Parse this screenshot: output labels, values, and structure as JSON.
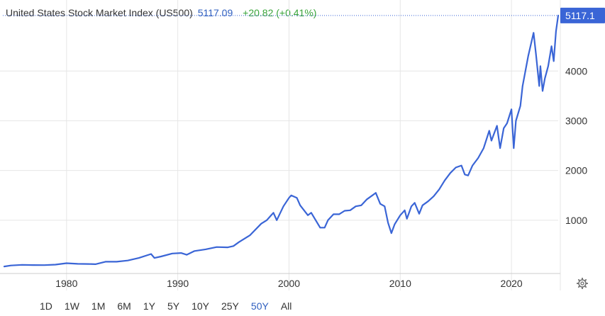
{
  "header": {
    "title": "United States Stock Market Index (US500)",
    "price": "5117.09",
    "change": "+20.82 (+0.41%)"
  },
  "ranges": [
    "1D",
    "1W",
    "1M",
    "6M",
    "1Y",
    "5Y",
    "10Y",
    "25Y",
    "50Y",
    "All"
  ],
  "active_range": "50Y",
  "icons": {
    "settings": "gear-icon"
  },
  "colors": {
    "line": "#3a65d6",
    "accent": "#2f5fbf",
    "positive": "#3aa53a"
  },
  "chart_data": {
    "type": "line",
    "title": "",
    "xlabel": "",
    "ylabel": "",
    "x_ticks": [
      1980,
      1990,
      2000,
      2010,
      2020
    ],
    "y_ticks": [
      1000,
      2000,
      3000,
      4000
    ],
    "xlim": [
      1974.4,
      2024.2
    ],
    "ylim": [
      -100,
      5230
    ],
    "last_value_label": "5117.1",
    "grid": true,
    "series": [
      {
        "x": [
          1974.4,
          1975.0,
          1976.0,
          1977.0,
          1978.0,
          1979.0,
          1980.0,
          1981.0,
          1982.0,
          1982.6,
          1983.5,
          1984.5,
          1985.5,
          1986.5,
          1987.6,
          1987.9,
          1988.5,
          1989.5,
          1990.3,
          1990.8,
          1991.5,
          1992.5,
          1993.5,
          1994.5,
          1995.0,
          1995.5,
          1996.5,
          1997.5,
          1998.0,
          1998.6,
          1998.9,
          1999.5,
          2000.0,
          2000.2,
          2000.7,
          2001.0,
          2001.7,
          2002.0,
          2002.4,
          2002.8,
          2003.2,
          2003.5,
          2004.0,
          2004.5,
          2005.0,
          2005.5,
          2006.0,
          2006.5,
          2007.0,
          2007.5,
          2007.8,
          2008.2,
          2008.6,
          2008.9,
          2009.2,
          2009.5,
          2010.0,
          2010.4,
          2010.6,
          2011.0,
          2011.3,
          2011.7,
          2012.0,
          2012.5,
          2013.0,
          2013.5,
          2014.0,
          2014.5,
          2015.0,
          2015.5,
          2015.8,
          2016.1,
          2016.5,
          2017.0,
          2017.5,
          2018.0,
          2018.2,
          2018.7,
          2018.98,
          2019.3,
          2019.6,
          2020.0,
          2020.2,
          2020.4,
          2020.8,
          2021.0,
          2021.5,
          2021.99,
          2022.2,
          2022.5,
          2022.6,
          2022.8,
          2023.0,
          2023.3,
          2023.6,
          2023.8,
          2024.0,
          2024.2
        ],
        "values": [
          70,
          90,
          102,
          98,
          96,
          107,
          135,
          122,
          120,
          115,
          165,
          165,
          190,
          240,
          320,
          240,
          270,
          330,
          340,
          305,
          380,
          415,
          460,
          455,
          480,
          560,
          700,
          930,
          1000,
          1150,
          1000,
          1280,
          1450,
          1500,
          1450,
          1300,
          1100,
          1150,
          1000,
          850,
          850,
          1000,
          1120,
          1120,
          1190,
          1200,
          1280,
          1300,
          1420,
          1500,
          1550,
          1330,
          1280,
          950,
          740,
          920,
          1100,
          1200,
          1030,
          1280,
          1350,
          1130,
          1300,
          1380,
          1480,
          1620,
          1800,
          1950,
          2060,
          2100,
          1920,
          1900,
          2100,
          2250,
          2450,
          2800,
          2600,
          2900,
          2450,
          2850,
          2950,
          3230,
          2450,
          3000,
          3300,
          3700,
          4300,
          4770,
          4350,
          3700,
          4100,
          3600,
          3850,
          4100,
          4500,
          4200,
          4800,
          5117
        ]
      }
    ]
  }
}
